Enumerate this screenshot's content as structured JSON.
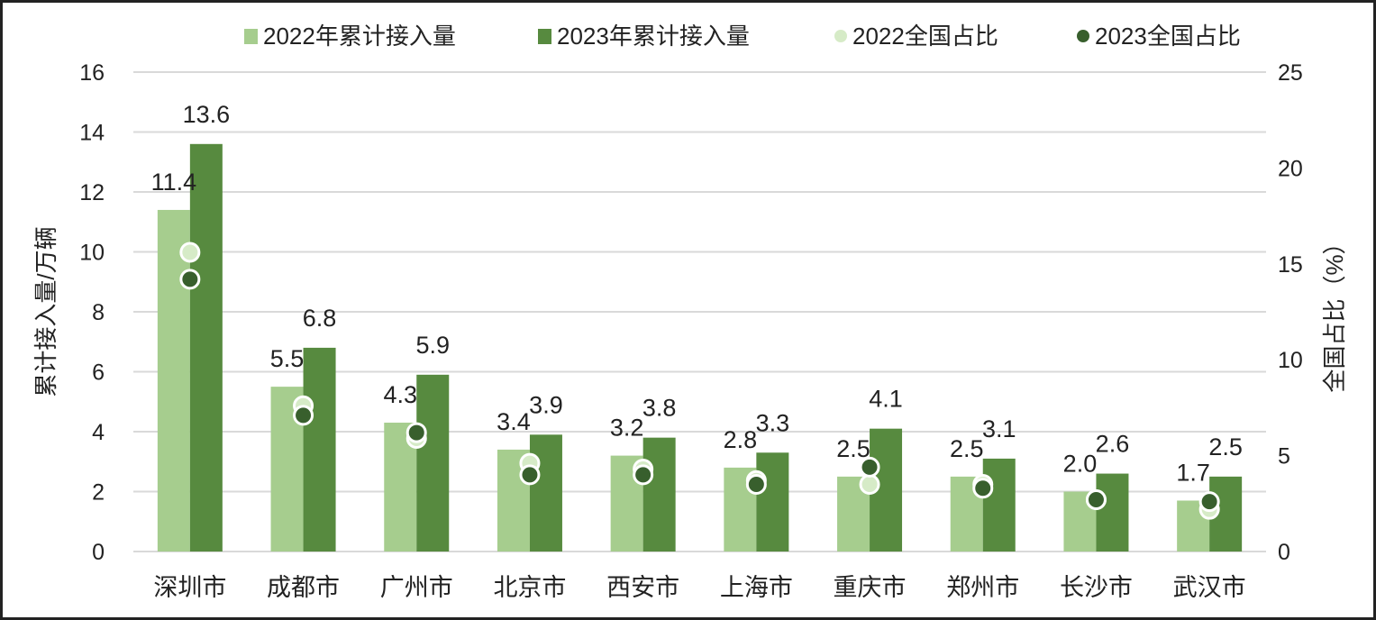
{
  "colors": {
    "bar_2022": "#a6cd8e",
    "bar_2023": "#578a3f",
    "dot_2022": "#d6ebc7",
    "dot_2023": "#385f2d",
    "grid": "#d9d9d9"
  },
  "chart_data": {
    "type": "bar",
    "categories": [
      "深圳市",
      "成都市",
      "广州市",
      "北京市",
      "西安市",
      "上海市",
      "重庆市",
      "郑州市",
      "长沙市",
      "武汉市"
    ],
    "series": [
      {
        "name": "2022年累计接入量",
        "kind": "bar",
        "axis": "left",
        "values": [
          11.4,
          5.5,
          4.3,
          3.4,
          3.2,
          2.8,
          2.5,
          2.5,
          2.0,
          1.7
        ],
        "labels": [
          "11.4",
          "5.5",
          "4.3",
          "3.4",
          "3.2",
          "2.8",
          "2.5",
          "2.5",
          "2.0",
          "1.7"
        ]
      },
      {
        "name": "2023年累计接入量",
        "kind": "bar",
        "axis": "left",
        "values": [
          13.6,
          6.8,
          5.9,
          3.9,
          3.8,
          3.3,
          4.1,
          3.1,
          2.6,
          2.5
        ],
        "labels": [
          "13.6",
          "6.8",
          "5.9",
          "3.9",
          "3.8",
          "3.3",
          "4.1",
          "3.1",
          "2.6",
          "2.5"
        ]
      },
      {
        "name": "2022全国占比",
        "kind": "dot",
        "axis": "right",
        "values": [
          15.6,
          7.6,
          5.9,
          4.6,
          4.3,
          3.7,
          3.5,
          3.5,
          2.7,
          2.2
        ]
      },
      {
        "name": "2023全国占比",
        "kind": "dot",
        "axis": "right",
        "values": [
          14.2,
          7.1,
          6.2,
          4.0,
          4.0,
          3.5,
          4.4,
          3.3,
          2.7,
          2.6
        ]
      }
    ],
    "left_axis": {
      "label": "累计接入量/万辆",
      "ylim": [
        0,
        16
      ],
      "ticks": [
        "0",
        "2",
        "4",
        "6",
        "8",
        "10",
        "12",
        "14",
        "16"
      ]
    },
    "right_axis": {
      "label": "全国占比（%）",
      "ylim": [
        0,
        25
      ],
      "ticks": [
        "0",
        "5",
        "10",
        "15",
        "20",
        "25"
      ]
    },
    "grid": true,
    "legend_position": "top"
  }
}
